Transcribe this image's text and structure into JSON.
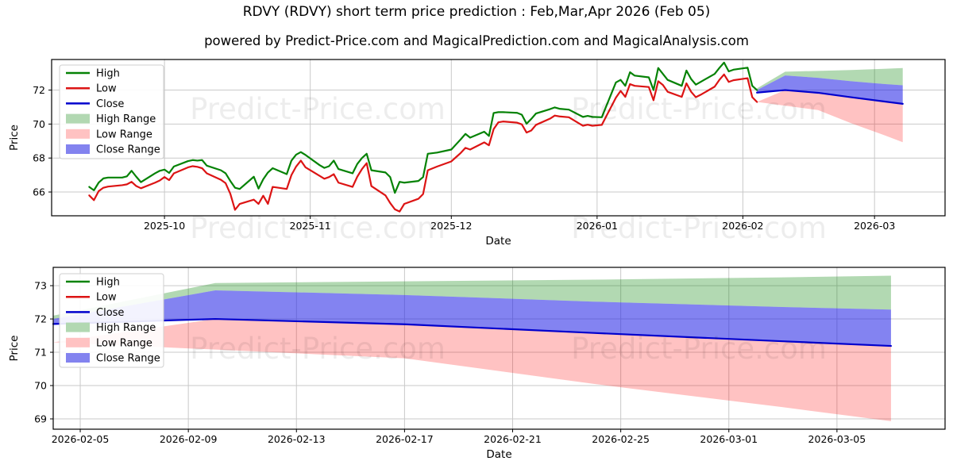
{
  "header": {
    "title": "RDVY (RDVY) short term price prediction : Feb,Mar,Apr 2026 (Feb 05)",
    "subtitle": "powered by Predict-Price.com and MagicalPrediction.com and MagicalAnalysis.com"
  },
  "watermark_text": "Predict-Price.com",
  "colors": {
    "high": "#058205",
    "low": "#dc1414",
    "close": "#0000cd",
    "high_range_fill": "rgba(0,128,0,0.30)",
    "low_range_fill": "rgba(255,0,0,0.24)",
    "close_range_fill": "rgba(30,30,230,0.55)",
    "high_range_solid": "#b2d8b2",
    "low_range_solid": "#ffc2c2",
    "close_range_solid": "#8383ef",
    "grid": "#c9c9c9",
    "frame": "#000000"
  },
  "legend": [
    {
      "label": "High",
      "type": "line",
      "color_key": "high"
    },
    {
      "label": "Low",
      "type": "line",
      "color_key": "low"
    },
    {
      "label": "Close",
      "type": "line",
      "color_key": "close"
    },
    {
      "label": "High Range",
      "type": "patch",
      "color_key": "high_range_solid"
    },
    {
      "label": "Low Range",
      "type": "patch",
      "color_key": "low_range_solid"
    },
    {
      "label": "Close Range",
      "type": "patch",
      "color_key": "close_range_solid"
    }
  ],
  "chart_data": {
    "type": "line",
    "history": {
      "dates": [
        "2025-09-15",
        "2025-09-16",
        "2025-09-17",
        "2025-09-18",
        "2025-09-19",
        "2025-09-22",
        "2025-09-23",
        "2025-09-24",
        "2025-09-25",
        "2025-09-26",
        "2025-09-29",
        "2025-09-30",
        "2025-10-01",
        "2025-10-02",
        "2025-10-03",
        "2025-10-06",
        "2025-10-07",
        "2025-10-08",
        "2025-10-09",
        "2025-10-10",
        "2025-10-13",
        "2025-10-14",
        "2025-10-15",
        "2025-10-16",
        "2025-10-17",
        "2025-10-20",
        "2025-10-21",
        "2025-10-22",
        "2025-10-23",
        "2025-10-24",
        "2025-10-27",
        "2025-10-28",
        "2025-10-29",
        "2025-10-30",
        "2025-10-31",
        "2025-11-03",
        "2025-11-04",
        "2025-11-05",
        "2025-11-06",
        "2025-11-07",
        "2025-11-10",
        "2025-11-11",
        "2025-11-12",
        "2025-11-13",
        "2025-11-14",
        "2025-11-17",
        "2025-11-18",
        "2025-11-19",
        "2025-11-20",
        "2025-11-21",
        "2025-11-24",
        "2025-11-25",
        "2025-11-26",
        "2025-11-28",
        "2025-12-01",
        "2025-12-02",
        "2025-12-03",
        "2025-12-04",
        "2025-12-05",
        "2025-12-08",
        "2025-12-09",
        "2025-12-10",
        "2025-12-11",
        "2025-12-12",
        "2025-12-15",
        "2025-12-16",
        "2025-12-17",
        "2025-12-18",
        "2025-12-19",
        "2025-12-22",
        "2025-12-23",
        "2025-12-24",
        "2025-12-26",
        "2025-12-29",
        "2025-12-30",
        "2025-12-31",
        "2026-01-02",
        "2026-01-05",
        "2026-01-06",
        "2026-01-07",
        "2026-01-08",
        "2026-01-09",
        "2026-01-12",
        "2026-01-13",
        "2026-01-14",
        "2026-01-15",
        "2026-01-16",
        "2026-01-19",
        "2026-01-20",
        "2026-01-21",
        "2026-01-22",
        "2026-01-23",
        "2026-01-26",
        "2026-01-27",
        "2026-01-28",
        "2026-01-29",
        "2026-01-30",
        "2026-02-02",
        "2026-02-03",
        "2026-02-04"
      ],
      "high": [
        66.3,
        66.1,
        66.55,
        66.8,
        66.85,
        66.85,
        66.92,
        67.25,
        66.9,
        66.58,
        67.1,
        67.25,
        67.32,
        67.12,
        67.5,
        67.82,
        67.88,
        67.85,
        67.88,
        67.55,
        67.28,
        67.1,
        66.65,
        66.25,
        66.18,
        66.9,
        66.2,
        66.75,
        67.15,
        67.4,
        67.05,
        67.85,
        68.2,
        68.35,
        68.18,
        67.58,
        67.42,
        67.52,
        67.85,
        67.35,
        67.1,
        67.65,
        68.0,
        68.25,
        67.28,
        67.15,
        66.88,
        65.95,
        66.6,
        66.55,
        66.65,
        66.88,
        68.25,
        68.32,
        68.5,
        68.8,
        69.1,
        69.42,
        69.2,
        69.55,
        69.3,
        70.65,
        70.7,
        70.7,
        70.66,
        70.55,
        70.02,
        70.3,
        70.62,
        70.88,
        70.98,
        70.9,
        70.85,
        70.42,
        70.48,
        70.42,
        70.4,
        72.45,
        72.6,
        72.25,
        73.05,
        72.85,
        72.75,
        72.0,
        73.3,
        72.95,
        72.6,
        72.25,
        73.15,
        72.65,
        72.32,
        72.48,
        72.95,
        73.3,
        73.62,
        73.1,
        73.2,
        73.32,
        72.25,
        72.0
      ],
      "low": [
        65.8,
        65.52,
        66.05,
        66.25,
        66.32,
        66.4,
        66.45,
        66.6,
        66.35,
        66.22,
        66.55,
        66.68,
        66.88,
        66.7,
        67.1,
        67.45,
        67.52,
        67.48,
        67.4,
        67.1,
        66.72,
        66.52,
        65.9,
        64.95,
        65.3,
        65.55,
        65.3,
        65.78,
        65.3,
        66.3,
        66.18,
        67.0,
        67.5,
        67.85,
        67.45,
        66.95,
        66.78,
        66.88,
        67.05,
        66.55,
        66.3,
        66.9,
        67.35,
        67.7,
        66.35,
        65.8,
        65.35,
        64.98,
        64.85,
        65.3,
        65.6,
        65.88,
        67.28,
        67.5,
        67.8,
        68.05,
        68.3,
        68.6,
        68.5,
        68.92,
        68.75,
        69.7,
        70.1,
        70.15,
        70.08,
        69.98,
        69.5,
        69.62,
        69.95,
        70.32,
        70.5,
        70.45,
        70.4,
        69.9,
        69.96,
        69.9,
        69.95,
        71.55,
        71.95,
        71.6,
        72.35,
        72.25,
        72.18,
        71.4,
        72.52,
        72.3,
        71.9,
        71.6,
        72.4,
        71.9,
        71.58,
        71.72,
        72.2,
        72.6,
        72.92,
        72.48,
        72.58,
        72.7,
        71.58,
        71.3
      ]
    },
    "prediction": {
      "dates": [
        "2026-02-04",
        "2026-02-10",
        "2026-02-17",
        "2026-02-24",
        "2026-03-03",
        "2026-03-07"
      ],
      "high_range_top": [
        72.1,
        73.08,
        73.13,
        73.18,
        73.25,
        73.3
      ],
      "close_range_top": [
        72.0,
        72.86,
        72.72,
        72.52,
        72.36,
        72.28
      ],
      "close": [
        71.85,
        72.0,
        71.84,
        71.58,
        71.33,
        71.19
      ],
      "low_range_top": [
        71.3,
        72.0,
        71.84,
        71.58,
        71.33,
        71.19
      ],
      "low_range_bottom": [
        71.3,
        71.08,
        70.82,
        70.05,
        69.35,
        68.93
      ]
    },
    "panels": [
      {
        "name": "history-and-forecast",
        "show_history": true,
        "xlabel": "Date",
        "ylabel": "Price",
        "xlim": [
          "2025-09-07",
          "2026-03-16"
        ],
        "ylim": [
          64.6,
          73.8
        ],
        "xticks": [
          {
            "date": "2025-10-01",
            "label": "2025-10"
          },
          {
            "date": "2025-11-01",
            "label": "2025-11"
          },
          {
            "date": "2025-12-01",
            "label": "2025-12"
          },
          {
            "date": "2026-01-01",
            "label": "2026-01"
          },
          {
            "date": "2026-02-01",
            "label": "2026-02"
          },
          {
            "date": "2026-03-01",
            "label": "2026-03"
          }
        ],
        "yticks": [
          66,
          68,
          70,
          72
        ]
      },
      {
        "name": "forecast-zoom",
        "show_history": false,
        "xlabel": "Date",
        "ylabel": "Price",
        "xlim": [
          "2026-02-04",
          "2026-03-09"
        ],
        "ylim": [
          68.69,
          73.55
        ],
        "xticks": [
          {
            "date": "2026-02-05",
            "label": "2026-02-05"
          },
          {
            "date": "2026-02-09",
            "label": "2026-02-09"
          },
          {
            "date": "2026-02-13",
            "label": "2026-02-13"
          },
          {
            "date": "2026-02-17",
            "label": "2026-02-17"
          },
          {
            "date": "2026-02-21",
            "label": "2026-02-21"
          },
          {
            "date": "2026-02-25",
            "label": "2026-02-25"
          },
          {
            "date": "2026-03-01",
            "label": "2026-03-01"
          },
          {
            "date": "2026-03-05",
            "label": "2026-03-05"
          }
        ],
        "yticks": [
          69,
          70,
          71,
          72,
          73
        ]
      }
    ]
  }
}
